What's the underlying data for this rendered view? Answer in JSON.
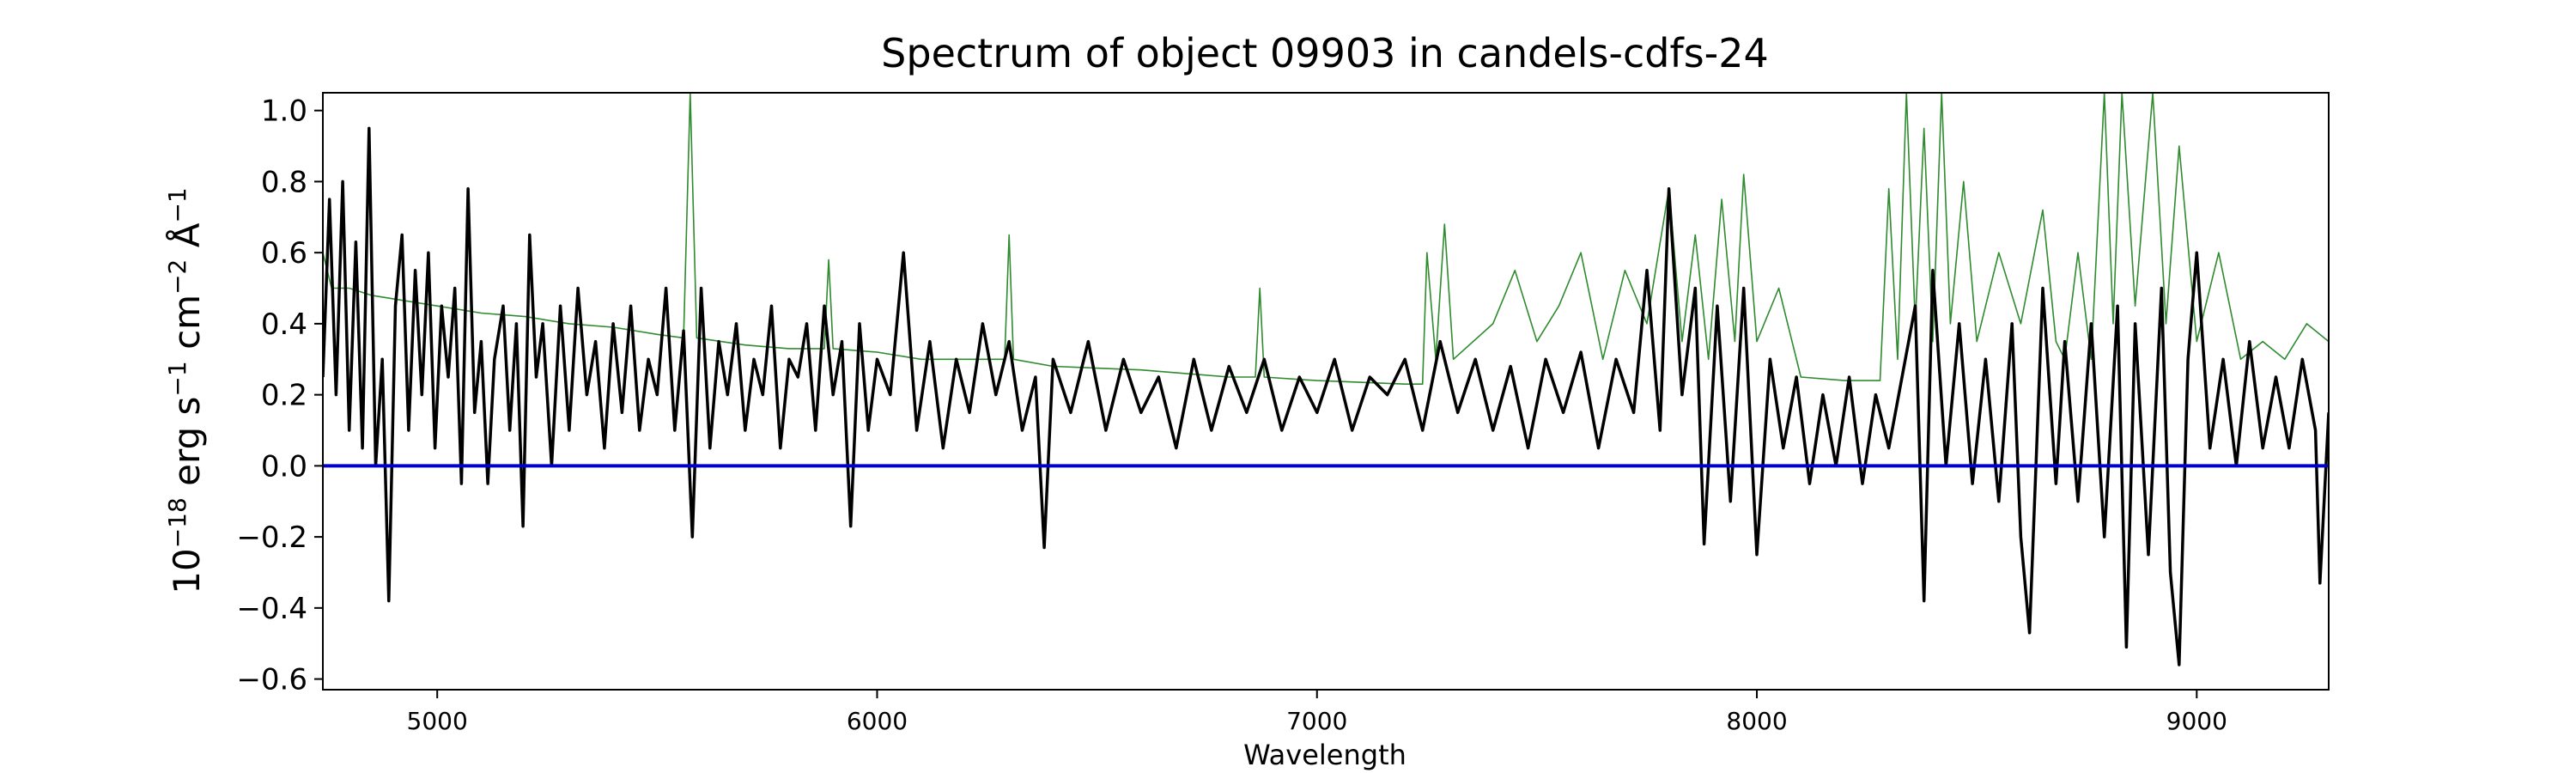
{
  "chart_data": {
    "type": "line",
    "title": "Spectrum of object 09903 in candels-cdfs-24",
    "xlabel": "Wavelength",
    "ylabel_parts": {
      "base": "10",
      "exp": "−18",
      "unit1": " erg s",
      "exp1": "−1",
      "unit2": " cm",
      "exp2": "−2",
      "unit3": " Å",
      "exp3": "−1"
    },
    "xlim": [
      4740,
      9300
    ],
    "ylim": [
      -0.63,
      1.05
    ],
    "xticks": [
      5000,
      6000,
      7000,
      8000,
      9000
    ],
    "yticks": [
      -0.6,
      -0.4,
      -0.2,
      0.0,
      0.2,
      0.4,
      0.6,
      0.8,
      1.0
    ],
    "ytick_labels": [
      "−0.6",
      "−0.4",
      "−0.2",
      "0.0",
      "0.2",
      "0.4",
      "0.6",
      "0.8",
      "1.0"
    ],
    "grid": false,
    "colors": {
      "flux": "#000000",
      "error": "#2e8b2e",
      "zero": "#0000cc"
    },
    "zero_line": 0.0,
    "series": [
      {
        "role": "flux",
        "points": [
          [
            4740,
            0.25
          ],
          [
            4755,
            0.75
          ],
          [
            4770,
            0.2
          ],
          [
            4785,
            0.8
          ],
          [
            4800,
            0.1
          ],
          [
            4815,
            0.63
          ],
          [
            4830,
            0.05
          ],
          [
            4845,
            0.95
          ],
          [
            4860,
            0.0
          ],
          [
            4875,
            0.3
          ],
          [
            4890,
            -0.38
          ],
          [
            4905,
            0.45
          ],
          [
            4920,
            0.65
          ],
          [
            4935,
            0.1
          ],
          [
            4950,
            0.55
          ],
          [
            4965,
            0.2
          ],
          [
            4980,
            0.6
          ],
          [
            4995,
            0.05
          ],
          [
            5010,
            0.45
          ],
          [
            5025,
            0.25
          ],
          [
            5040,
            0.5
          ],
          [
            5055,
            -0.05
          ],
          [
            5070,
            0.78
          ],
          [
            5085,
            0.15
          ],
          [
            5100,
            0.35
          ],
          [
            5115,
            -0.05
          ],
          [
            5130,
            0.3
          ],
          [
            5150,
            0.45
          ],
          [
            5165,
            0.1
          ],
          [
            5180,
            0.4
          ],
          [
            5195,
            -0.17
          ],
          [
            5210,
            0.65
          ],
          [
            5225,
            0.25
          ],
          [
            5240,
            0.4
          ],
          [
            5260,
            0.0
          ],
          [
            5280,
            0.45
          ],
          [
            5300,
            0.1
          ],
          [
            5320,
            0.5
          ],
          [
            5340,
            0.2
          ],
          [
            5360,
            0.35
          ],
          [
            5380,
            0.05
          ],
          [
            5400,
            0.4
          ],
          [
            5420,
            0.15
          ],
          [
            5440,
            0.45
          ],
          [
            5460,
            0.1
          ],
          [
            5480,
            0.3
          ],
          [
            5500,
            0.2
          ],
          [
            5520,
            0.5
          ],
          [
            5540,
            0.1
          ],
          [
            5560,
            0.38
          ],
          [
            5580,
            -0.2
          ],
          [
            5600,
            0.5
          ],
          [
            5620,
            0.05
          ],
          [
            5640,
            0.35
          ],
          [
            5660,
            0.2
          ],
          [
            5680,
            0.4
          ],
          [
            5700,
            0.1
          ],
          [
            5720,
            0.3
          ],
          [
            5740,
            0.2
          ],
          [
            5760,
            0.45
          ],
          [
            5780,
            0.05
          ],
          [
            5800,
            0.3
          ],
          [
            5820,
            0.25
          ],
          [
            5840,
            0.4
          ],
          [
            5860,
            0.1
          ],
          [
            5880,
            0.45
          ],
          [
            5900,
            0.2
          ],
          [
            5920,
            0.35
          ],
          [
            5940,
            -0.17
          ],
          [
            5960,
            0.4
          ],
          [
            5980,
            0.1
          ],
          [
            6000,
            0.3
          ],
          [
            6030,
            0.2
          ],
          [
            6060,
            0.6
          ],
          [
            6090,
            0.1
          ],
          [
            6120,
            0.35
          ],
          [
            6150,
            0.05
          ],
          [
            6180,
            0.3
          ],
          [
            6210,
            0.15
          ],
          [
            6240,
            0.4
          ],
          [
            6270,
            0.2
          ],
          [
            6300,
            0.35
          ],
          [
            6330,
            0.1
          ],
          [
            6360,
            0.25
          ],
          [
            6380,
            -0.23
          ],
          [
            6400,
            0.3
          ],
          [
            6440,
            0.15
          ],
          [
            6480,
            0.35
          ],
          [
            6520,
            0.1
          ],
          [
            6560,
            0.3
          ],
          [
            6600,
            0.15
          ],
          [
            6640,
            0.25
          ],
          [
            6680,
            0.05
          ],
          [
            6720,
            0.3
          ],
          [
            6760,
            0.1
          ],
          [
            6800,
            0.28
          ],
          [
            6840,
            0.15
          ],
          [
            6880,
            0.3
          ],
          [
            6920,
            0.1
          ],
          [
            6960,
            0.25
          ],
          [
            7000,
            0.15
          ],
          [
            7040,
            0.3
          ],
          [
            7080,
            0.1
          ],
          [
            7120,
            0.25
          ],
          [
            7160,
            0.2
          ],
          [
            7200,
            0.3
          ],
          [
            7240,
            0.1
          ],
          [
            7280,
            0.35
          ],
          [
            7320,
            0.15
          ],
          [
            7360,
            0.3
          ],
          [
            7400,
            0.1
          ],
          [
            7440,
            0.28
          ],
          [
            7480,
            0.05
          ],
          [
            7520,
            0.3
          ],
          [
            7560,
            0.15
          ],
          [
            7600,
            0.32
          ],
          [
            7640,
            0.05
          ],
          [
            7680,
            0.3
          ],
          [
            7720,
            0.15
          ],
          [
            7750,
            0.55
          ],
          [
            7780,
            0.1
          ],
          [
            7800,
            0.78
          ],
          [
            7830,
            0.2
          ],
          [
            7860,
            0.5
          ],
          [
            7880,
            -0.22
          ],
          [
            7910,
            0.45
          ],
          [
            7940,
            -0.1
          ],
          [
            7970,
            0.5
          ],
          [
            8000,
            -0.25
          ],
          [
            8030,
            0.3
          ],
          [
            8060,
            0.05
          ],
          [
            8090,
            0.25
          ],
          [
            8120,
            -0.05
          ],
          [
            8150,
            0.2
          ],
          [
            8180,
            0.0
          ],
          [
            8210,
            0.25
          ],
          [
            8240,
            -0.05
          ],
          [
            8270,
            0.2
          ],
          [
            8300,
            0.05
          ],
          [
            8330,
            0.25
          ],
          [
            8360,
            0.45
          ],
          [
            8380,
            -0.38
          ],
          [
            8400,
            0.55
          ],
          [
            8430,
            0.0
          ],
          [
            8460,
            0.4
          ],
          [
            8490,
            -0.05
          ],
          [
            8520,
            0.3
          ],
          [
            8550,
            -0.1
          ],
          [
            8580,
            0.4
          ],
          [
            8600,
            -0.2
          ],
          [
            8620,
            -0.47
          ],
          [
            8650,
            0.5
          ],
          [
            8680,
            -0.05
          ],
          [
            8700,
            0.35
          ],
          [
            8730,
            -0.1
          ],
          [
            8760,
            0.4
          ],
          [
            8790,
            -0.2
          ],
          [
            8820,
            0.45
          ],
          [
            8840,
            -0.51
          ],
          [
            8860,
            0.4
          ],
          [
            8890,
            -0.25
          ],
          [
            8920,
            0.5
          ],
          [
            8940,
            -0.3
          ],
          [
            8960,
            -0.56
          ],
          [
            8980,
            0.3
          ],
          [
            9000,
            0.6
          ],
          [
            9030,
            0.05
          ],
          [
            9060,
            0.3
          ],
          [
            9090,
            0.0
          ],
          [
            9120,
            0.35
          ],
          [
            9150,
            0.05
          ],
          [
            9180,
            0.25
          ],
          [
            9210,
            0.05
          ],
          [
            9240,
            0.3
          ],
          [
            9270,
            0.1
          ],
          [
            9280,
            -0.33
          ],
          [
            9300,
            0.15
          ]
        ]
      },
      {
        "role": "error",
        "points": [
          [
            4740,
            0.6
          ],
          [
            4760,
            0.5
          ],
          [
            4800,
            0.5
          ],
          [
            4850,
            0.48
          ],
          [
            4900,
            0.47
          ],
          [
            5000,
            0.45
          ],
          [
            5100,
            0.43
          ],
          [
            5200,
            0.42
          ],
          [
            5300,
            0.4
          ],
          [
            5400,
            0.39
          ],
          [
            5500,
            0.37
          ],
          [
            5560,
            0.36
          ],
          [
            5575,
            1.05
          ],
          [
            5590,
            0.36
          ],
          [
            5700,
            0.34
          ],
          [
            5800,
            0.33
          ],
          [
            5880,
            0.33
          ],
          [
            5890,
            0.58
          ],
          [
            5900,
            0.33
          ],
          [
            6000,
            0.32
          ],
          [
            6100,
            0.3
          ],
          [
            6200,
            0.3
          ],
          [
            6290,
            0.3
          ],
          [
            6300,
            0.65
          ],
          [
            6310,
            0.3
          ],
          [
            6400,
            0.28
          ],
          [
            6600,
            0.27
          ],
          [
            6800,
            0.25
          ],
          [
            6860,
            0.25
          ],
          [
            6870,
            0.5
          ],
          [
            6880,
            0.25
          ],
          [
            7000,
            0.24
          ],
          [
            7200,
            0.23
          ],
          [
            7240,
            0.23
          ],
          [
            7250,
            0.6
          ],
          [
            7270,
            0.3
          ],
          [
            7290,
            0.68
          ],
          [
            7310,
            0.3
          ],
          [
            7400,
            0.4
          ],
          [
            7450,
            0.55
          ],
          [
            7500,
            0.35
          ],
          [
            7550,
            0.45
          ],
          [
            7600,
            0.6
          ],
          [
            7650,
            0.3
          ],
          [
            7700,
            0.55
          ],
          [
            7750,
            0.4
          ],
          [
            7800,
            0.78
          ],
          [
            7830,
            0.35
          ],
          [
            7860,
            0.65
          ],
          [
            7890,
            0.3
          ],
          [
            7920,
            0.75
          ],
          [
            7950,
            0.35
          ],
          [
            7970,
            0.82
          ],
          [
            8000,
            0.35
          ],
          [
            8050,
            0.5
          ],
          [
            8100,
            0.25
          ],
          [
            8200,
            0.24
          ],
          [
            8280,
            0.24
          ],
          [
            8300,
            0.78
          ],
          [
            8320,
            0.3
          ],
          [
            8340,
            1.05
          ],
          [
            8360,
            0.4
          ],
          [
            8380,
            0.95
          ],
          [
            8400,
            0.35
          ],
          [
            8420,
            1.05
          ],
          [
            8440,
            0.4
          ],
          [
            8470,
            0.8
          ],
          [
            8500,
            0.35
          ],
          [
            8550,
            0.6
          ],
          [
            8600,
            0.4
          ],
          [
            8650,
            0.72
          ],
          [
            8680,
            0.35
          ],
          [
            8700,
            0.3
          ],
          [
            8730,
            0.6
          ],
          [
            8760,
            0.3
          ],
          [
            8790,
            1.05
          ],
          [
            8810,
            0.4
          ],
          [
            8830,
            1.05
          ],
          [
            8860,
            0.45
          ],
          [
            8900,
            1.05
          ],
          [
            8930,
            0.4
          ],
          [
            8960,
            0.9
          ],
          [
            9000,
            0.35
          ],
          [
            9050,
            0.6
          ],
          [
            9100,
            0.3
          ],
          [
            9150,
            0.35
          ],
          [
            9200,
            0.3
          ],
          [
            9250,
            0.4
          ],
          [
            9300,
            0.35
          ]
        ]
      }
    ]
  }
}
